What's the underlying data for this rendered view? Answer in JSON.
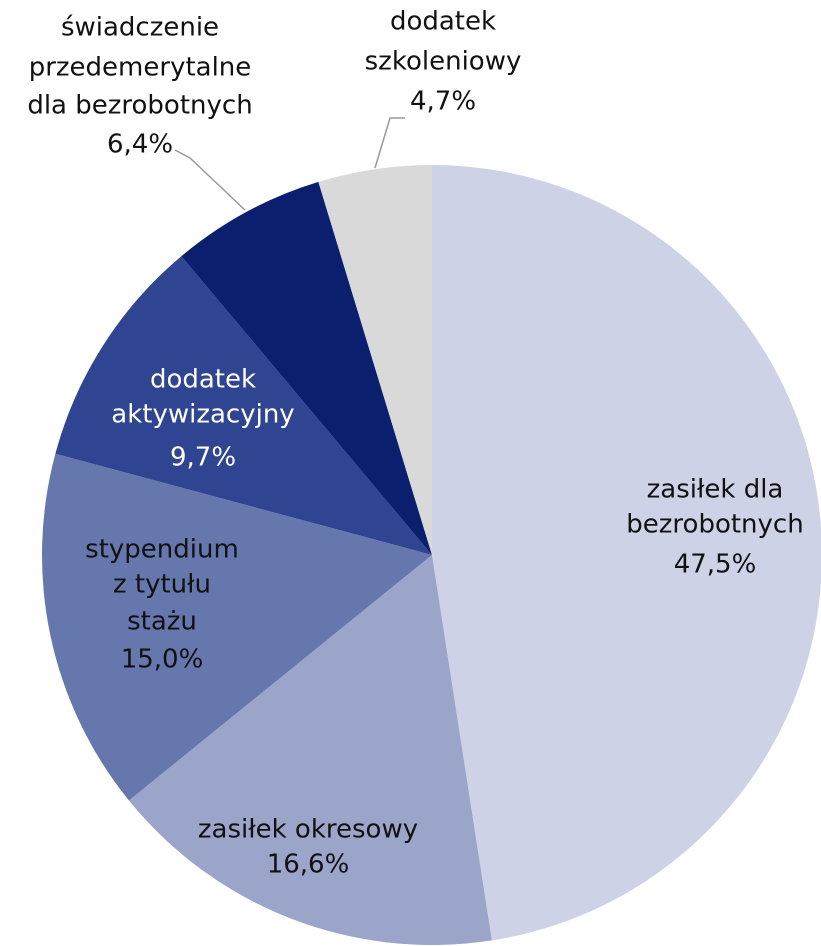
{
  "chart_data": {
    "type": "pie",
    "labels": [
      [
        "zasiłek dla",
        "bezrobotnych"
      ],
      [
        "zasiłek okresowy"
      ],
      [
        "stypendium",
        "z tytułu",
        "stażu"
      ],
      [
        "dodatek",
        "aktywizacyjny"
      ],
      [
        "świadczenie",
        "przedemerytalne",
        "dla bezrobotnych"
      ],
      [
        "dodatek",
        "szkoleniowy"
      ]
    ],
    "values": [
      47.5,
      16.6,
      15.0,
      9.7,
      6.4,
      4.7
    ],
    "value_labels": [
      "47,5%",
      "16,6%",
      "15,0%",
      "9,7%",
      "6,4%",
      "4,7%"
    ],
    "colors": [
      "#cdd2e6",
      "#9aa5c9",
      "#6677ae",
      "#304592",
      "#0a1f6e",
      "#d9d9d9"
    ]
  }
}
